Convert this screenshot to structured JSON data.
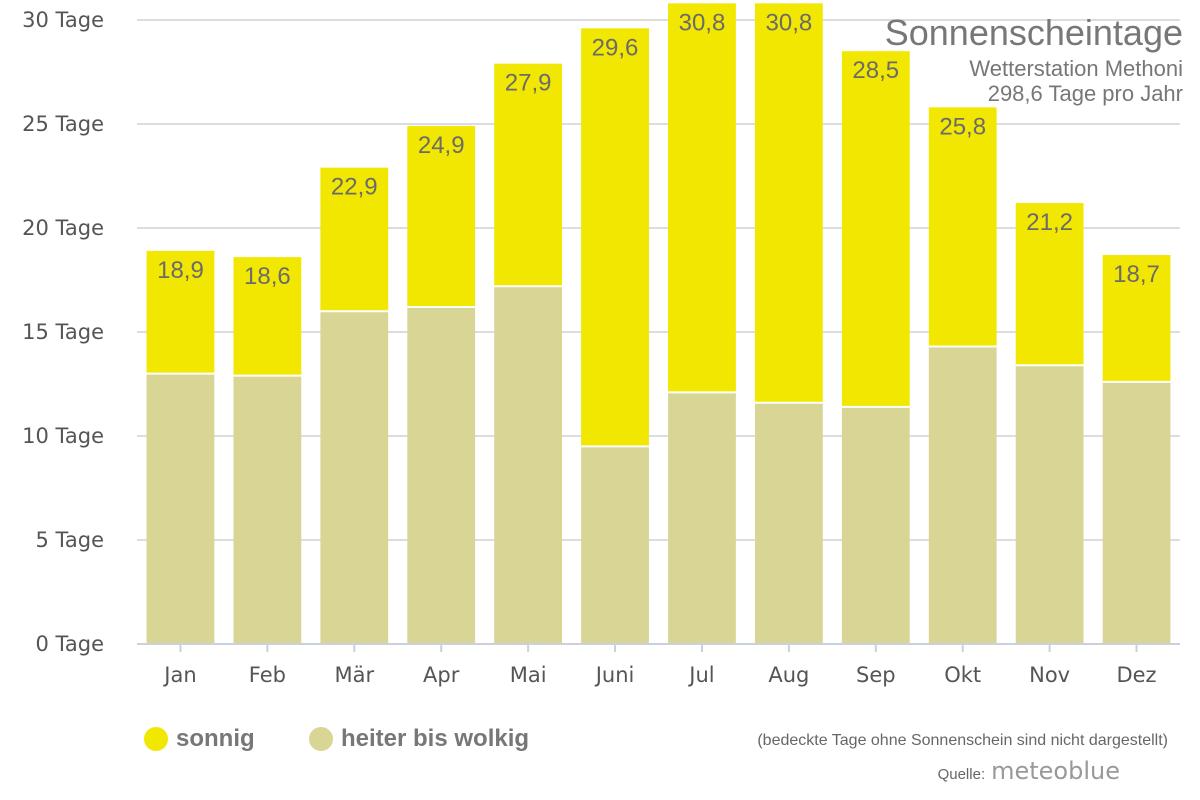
{
  "chart_data": {
    "type": "bar",
    "stacked": true,
    "title": "Sonnenscheintage",
    "subtitle": "Wetterstation Methoni",
    "subtitle2": "298,6 Tage pro Jahr",
    "categories": [
      "Jan",
      "Feb",
      "Mär",
      "Apr",
      "Mai",
      "Juni",
      "Jul",
      "Aug",
      "Sep",
      "Okt",
      "Nov",
      "Dez"
    ],
    "series": [
      {
        "name": "heiter bis wolkig",
        "color": "#d8d595",
        "values": [
          13.0,
          12.9,
          16.0,
          16.2,
          17.2,
          9.5,
          12.1,
          11.6,
          11.4,
          14.3,
          13.4,
          12.6
        ]
      },
      {
        "name": "sonnig",
        "color": "#f2e700",
        "values": [
          5.9,
          5.7,
          6.9,
          8.7,
          10.7,
          20.1,
          18.7,
          19.2,
          17.1,
          11.5,
          7.8,
          6.1
        ]
      }
    ],
    "totals": [
      18.9,
      18.6,
      22.9,
      24.9,
      27.9,
      29.6,
      30.8,
      30.8,
      28.5,
      25.8,
      21.2,
      18.7
    ],
    "total_labels": [
      "18,9",
      "18,6",
      "22,9",
      "24,9",
      "27,9",
      "29,6",
      "30,8",
      "30,8",
      "28,5",
      "25,8",
      "21,2",
      "18,7"
    ],
    "yticks": [
      0,
      5,
      10,
      15,
      20,
      25,
      30
    ],
    "ytick_labels": [
      "0 Tage",
      "5 Tage",
      "10 Tage",
      "15 Tage",
      "20 Tage",
      "25 Tage",
      "30 Tage"
    ],
    "ylim": [
      0,
      30
    ],
    "grid": true,
    "legend_position": "bottom-left"
  },
  "legend": [
    {
      "label": "sonnig",
      "color": "#f2e700"
    },
    {
      "label": "heiter bis wolkig",
      "color": "#d8d595"
    }
  ],
  "footnote": "(bedeckte Tage ohne Sonnenschein sind nicht dargestellt)",
  "source_label": "Quelle:",
  "source_brand": "meteoblue"
}
